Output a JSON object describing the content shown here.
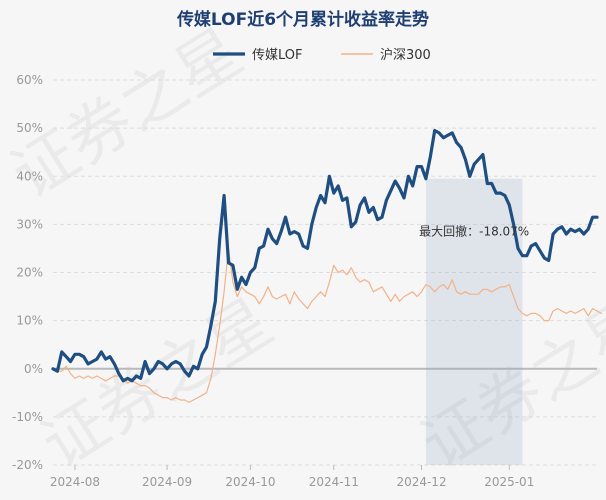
{
  "chart_data": {
    "type": "line",
    "title": "传媒LOF近6个月累计收益率走势",
    "xlabel": "",
    "ylabel": "",
    "ylim": [
      -20,
      60
    ],
    "ytick_labels": [
      "-20%",
      "-10%",
      "0%",
      "10%",
      "20%",
      "30%",
      "40%",
      "50%",
      "60%"
    ],
    "ytick_values": [
      -20,
      -10,
      0,
      10,
      20,
      30,
      40,
      50,
      60
    ],
    "x_axis_max_index": 124,
    "xticks": [
      {
        "label": "2024-08",
        "index": 5
      },
      {
        "label": "2024-09",
        "index": 26
      },
      {
        "label": "2024-10",
        "index": 45
      },
      {
        "label": "2024-11",
        "index": 64
      },
      {
        "label": "2024-12",
        "index": 84
      },
      {
        "label": "2025-01",
        "index": 104
      }
    ],
    "series": [
      {
        "name": "传媒LOF",
        "color": "#1f4e82",
        "values": [
          0,
          -0.5,
          3.5,
          2.5,
          1.5,
          3,
          3,
          2.5,
          1,
          1.5,
          2,
          3.5,
          2,
          2.5,
          1,
          -1,
          -2.5,
          -2,
          -2.5,
          -1.5,
          -2,
          1.5,
          -1,
          0,
          1.5,
          1,
          0,
          1,
          1.5,
          1,
          -0.5,
          -1.5,
          0.5,
          0,
          3,
          4.5,
          9,
          14,
          27,
          36,
          22,
          21.5,
          16.5,
          19,
          17.5,
          20,
          21,
          25,
          25.5,
          29,
          27,
          26,
          28.5,
          31.5,
          28,
          28.5,
          28,
          25.5,
          25,
          30,
          33.5,
          36,
          34.5,
          40,
          36.5,
          38,
          35,
          35.5,
          29.5,
          30.5,
          34,
          35.5,
          32.5,
          33.5,
          31,
          31.5,
          35,
          37,
          39,
          37.5,
          35.5,
          40,
          38,
          42,
          42,
          39.5,
          44,
          49.5,
          49,
          48,
          48.5,
          49,
          47,
          46,
          43.5,
          40,
          42.5,
          43.5,
          44.5,
          38.5,
          38.5,
          36.5,
          36.5,
          36,
          34,
          30,
          25,
          23.5,
          23.5,
          25.5,
          26,
          24.5,
          23,
          22.5,
          28,
          29,
          29.5,
          28,
          29,
          28.5,
          29,
          28,
          29,
          31.5,
          31.5
        ],
        "line_width": 3.2
      },
      {
        "name": "沪深300",
        "color": "#f2b287",
        "values": [
          0,
          -0.5,
          -0.5,
          0.5,
          -1,
          -2,
          -1.5,
          -2,
          -1.5,
          -2,
          -1.5,
          -2,
          -2.5,
          -2,
          -1.5,
          -1.5,
          -2,
          -3,
          -2.5,
          -3,
          -3.5,
          -3.5,
          -4,
          -5,
          -5.5,
          -6,
          -6,
          -6.5,
          -6,
          -6.5,
          -6.5,
          -7,
          -6.5,
          -6,
          -5.5,
          -5,
          -2,
          3,
          9,
          16,
          25,
          18,
          15,
          17,
          16,
          15.5,
          15,
          13.5,
          15,
          17,
          15,
          14.5,
          15,
          15.5,
          13.5,
          16,
          14.5,
          13.5,
          12.5,
          14,
          15,
          16,
          15,
          18,
          21.5,
          20,
          20.5,
          19.5,
          21,
          19,
          18,
          18.5,
          18,
          16,
          16.5,
          17,
          15.5,
          14,
          15.5,
          14,
          15,
          15.5,
          16,
          15,
          16,
          17.5,
          17,
          16,
          17,
          17.5,
          16.5,
          18.5,
          16,
          15.5,
          16,
          15.5,
          15.5,
          15.5,
          16.5,
          16.5,
          16,
          16.5,
          17,
          17,
          17.5,
          15,
          12.5,
          11.5,
          11,
          11.5,
          11.5,
          11,
          10,
          10,
          12,
          12.5,
          12,
          11.5,
          12,
          11.5,
          12,
          12.5,
          11,
          12.5,
          12,
          11.5
        ]
      }
    ],
    "drawdown": {
      "label": "最大回撤：-18.07%",
      "start_index": 85,
      "end_index": 107,
      "color": "#8fa5c2"
    },
    "legend_position": "top-center",
    "grid": "horizontal-dashed"
  },
  "watermark": {
    "text": "证券之星",
    "color": "#000000"
  }
}
